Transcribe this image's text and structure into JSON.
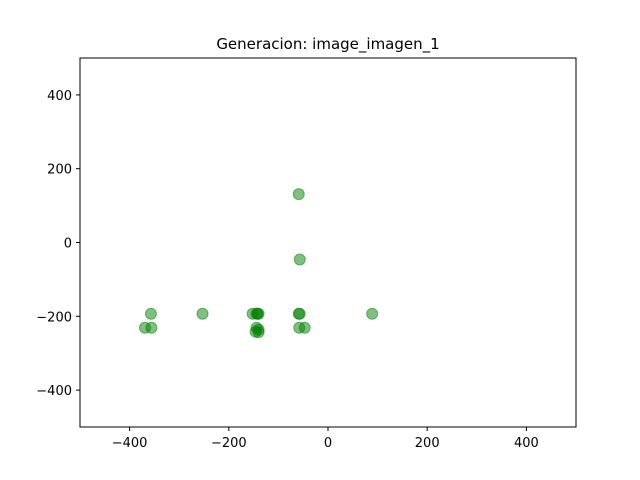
{
  "chart_data": {
    "type": "scatter",
    "title": "Generacion: image_imagen_1",
    "xlabel": "",
    "ylabel": "",
    "xlim": [
      -500,
      500
    ],
    "ylim": [
      -500,
      500
    ],
    "xticks": [
      -400,
      -200,
      0,
      200,
      400
    ],
    "yticks": [
      -400,
      -200,
      0,
      200,
      400
    ],
    "xtick_labels": [
      "−400",
      "−200",
      "0",
      "200",
      "400"
    ],
    "ytick_labels": [
      "−400",
      "−200",
      "0",
      "200",
      "400"
    ],
    "grid": false,
    "marker_color": "#008000",
    "marker_alpha": 0.5,
    "series": [
      {
        "x": [
          -59,
          -57,
          -357,
          -253,
          -152,
          -142,
          -144,
          -140,
          -59,
          -57,
          -369,
          -356,
          -144,
          -140,
          -146,
          -140,
          -58,
          -47,
          89
        ],
        "y": [
          131,
          -46,
          -193,
          -193,
          -193,
          -193,
          -193,
          -193,
          -193,
          -193,
          -231,
          -231,
          -231,
          -236,
          -242,
          -243,
          -231,
          -231,
          -193
        ]
      }
    ]
  }
}
